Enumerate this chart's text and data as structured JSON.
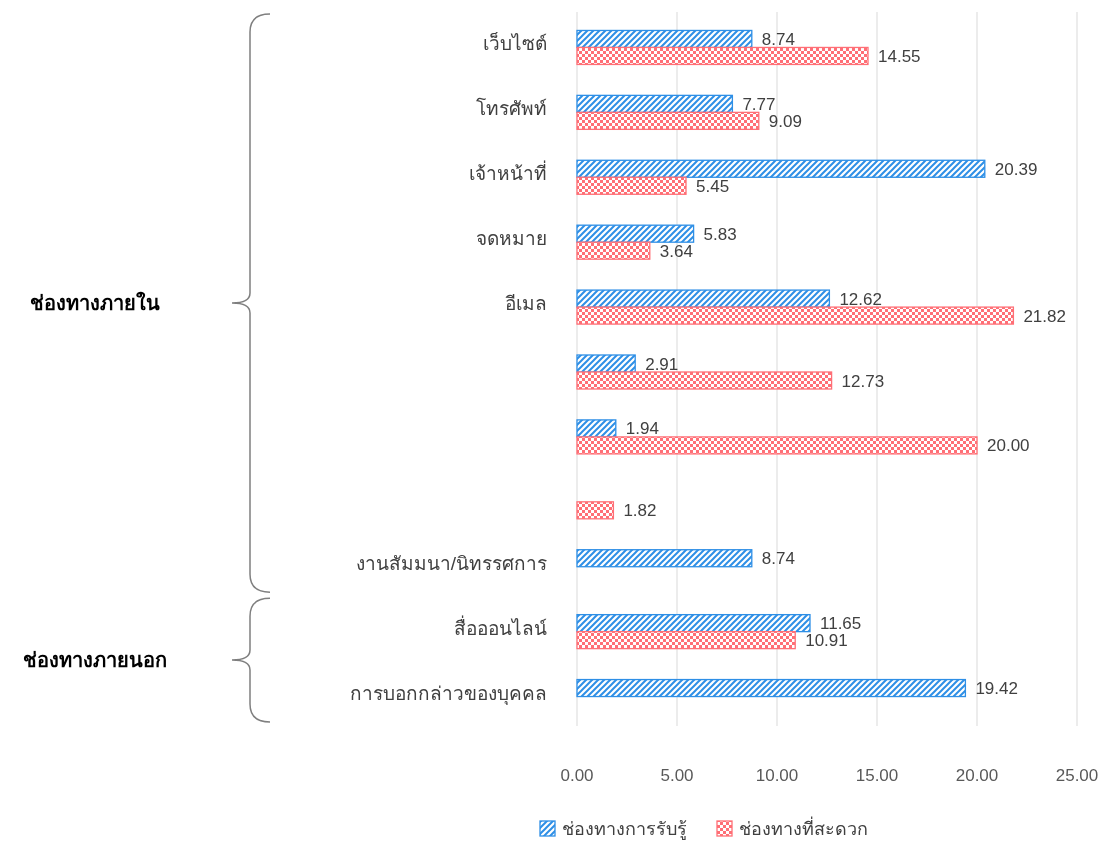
{
  "chart_data": {
    "type": "bar",
    "orientation": "horizontal",
    "categories": [
      "เว็บไซต์",
      "โทรศัพท์",
      "เจ้าหน้าที่",
      "จดหมาย",
      "อีเมล",
      null,
      null,
      null,
      "งานสัมมนา/นิทรรศการ",
      "สื่อออนไลน์",
      "การบอกกล่าวของบุคคล"
    ],
    "series": [
      {
        "name": "ช่องทางการรับรู้",
        "color": "#2e8fe6",
        "values": [
          8.74,
          7.77,
          20.39,
          5.83,
          12.62,
          2.91,
          1.94,
          null,
          8.74,
          11.65,
          19.42
        ],
        "value_labels": [
          "8.74",
          "7.77",
          "20.39",
          "5.83",
          "12.62",
          "2.91",
          "1.94",
          null,
          "8.74",
          "11.65",
          "19.42"
        ]
      },
      {
        "name": "ช่องทางที่สะดวก",
        "color": "#ff6f76",
        "values": [
          14.55,
          9.09,
          5.45,
          3.64,
          21.82,
          12.73,
          20.0,
          1.82,
          null,
          10.91,
          null
        ],
        "value_labels": [
          "14.55",
          "9.09",
          "5.45",
          "3.64",
          "21.82",
          "12.73",
          "20.00",
          "1.82",
          null,
          "10.91",
          null
        ]
      }
    ],
    "xlim": [
      0,
      25
    ],
    "xticks": [
      {
        "value": 0,
        "label": "0.00"
      },
      {
        "value": 5,
        "label": "5.00"
      },
      {
        "value": 10,
        "label": "10.00"
      },
      {
        "value": 15,
        "label": "15.00"
      },
      {
        "value": 20,
        "label": "20.00"
      },
      {
        "value": 25,
        "label": "25.00"
      }
    ],
    "grid": "x",
    "legend": "bottom",
    "annotations": [
      "ช่องทางภายใน",
      "ช่องทางภายนอก"
    ]
  }
}
